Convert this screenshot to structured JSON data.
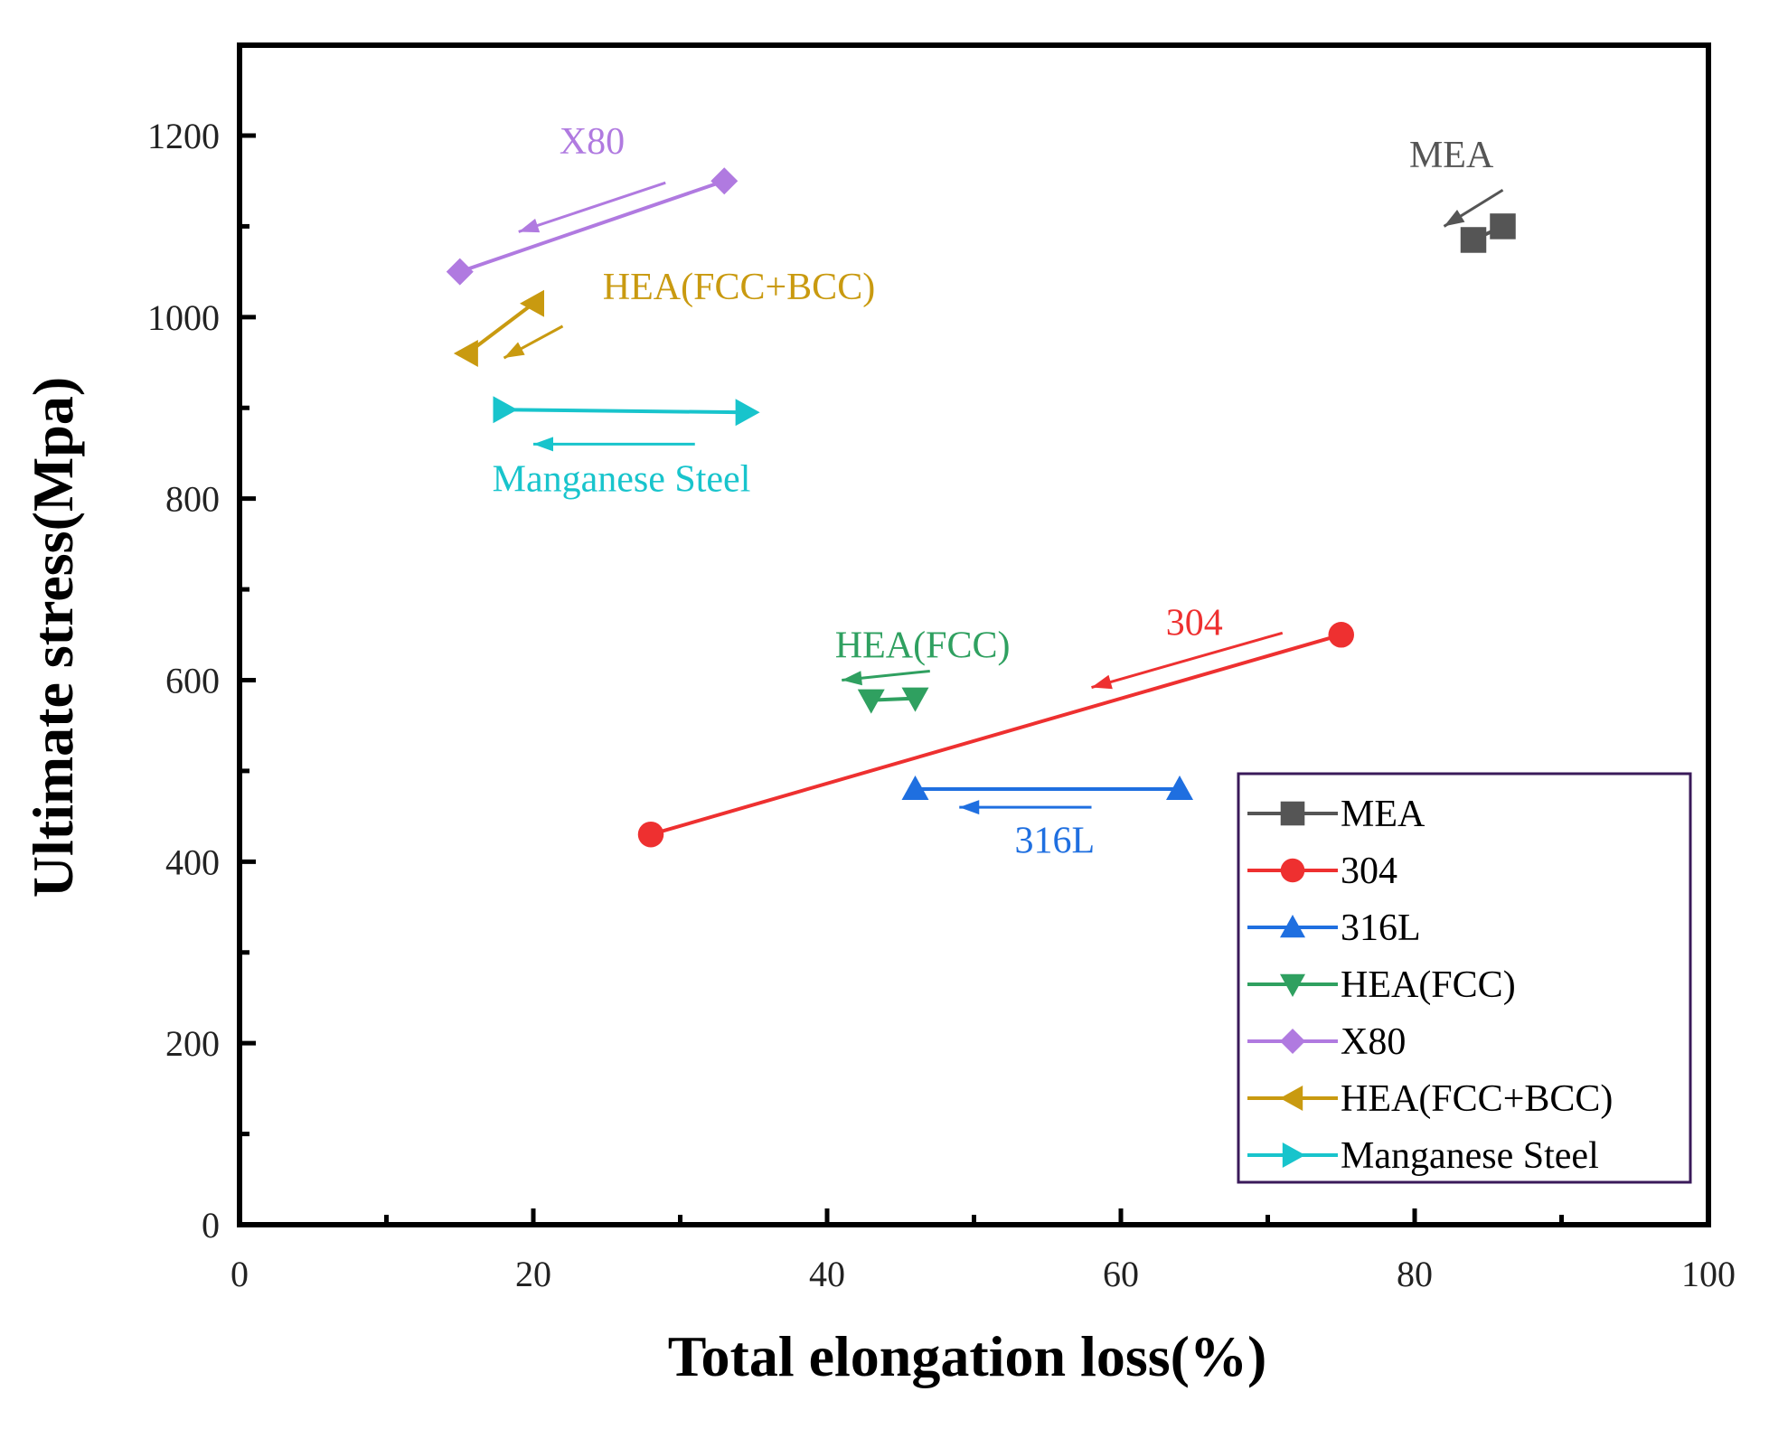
{
  "chart_data": {
    "type": "scatter",
    "title": "",
    "xlabel": "Total elongation loss(%)",
    "ylabel": "Ultimate stress(Mpa)",
    "xlim": [
      0,
      100
    ],
    "ylim": [
      0,
      1300
    ],
    "xticks": [
      0,
      20,
      40,
      60,
      80,
      100
    ],
    "yticks": [
      0,
      200,
      400,
      600,
      800,
      1000,
      1200
    ],
    "grid": false,
    "legend_position": "bottom-right",
    "series": [
      {
        "name": "MEA",
        "color": "#555555",
        "marker": "square",
        "points": [
          [
            84,
            1085
          ],
          [
            86,
            1100
          ]
        ],
        "annotation": {
          "text": "MEA",
          "x": 82.5,
          "y": 1165
        },
        "arrow": {
          "from": [
            86,
            1140
          ],
          "to": [
            82,
            1100
          ]
        }
      },
      {
        "name": "304",
        "color": "#ee3030",
        "marker": "circle",
        "points": [
          [
            28,
            430
          ],
          [
            75,
            650
          ]
        ],
        "annotation": {
          "text": "304",
          "x": 65,
          "y": 650
        },
        "arrow": {
          "from": [
            71,
            652
          ],
          "to": [
            58,
            592
          ]
        }
      },
      {
        "name": "316L",
        "color": "#1f6fe0",
        "marker": "triangle-up",
        "points": [
          [
            46,
            480
          ],
          [
            64,
            480
          ]
        ],
        "annotation": {
          "text": "316L",
          "x": 55.5,
          "y": 410
        },
        "arrow": {
          "from": [
            58,
            460
          ],
          "to": [
            49,
            460
          ]
        }
      },
      {
        "name": "HEA(FCC)",
        "color": "#2fa060",
        "marker": "triangle-down",
        "points": [
          [
            43,
            578
          ],
          [
            46,
            580
          ]
        ],
        "annotation": {
          "text": "HEA(FCC)",
          "x": 46.5,
          "y": 625
        },
        "arrow": {
          "from": [
            47,
            610
          ],
          "to": [
            41,
            600
          ]
        }
      },
      {
        "name": "X80",
        "color": "#b07ae0",
        "marker": "diamond",
        "points": [
          [
            15,
            1050
          ],
          [
            33,
            1150
          ]
        ],
        "annotation": {
          "text": "X80",
          "x": 24,
          "y": 1180
        },
        "arrow": {
          "from": [
            29,
            1148
          ],
          "to": [
            19,
            1094
          ]
        }
      },
      {
        "name": "HEA(FCC+BCC)",
        "color": "#c99a10",
        "marker": "triangle-left",
        "points": [
          [
            15.5,
            960
          ],
          [
            20,
            1015
          ]
        ],
        "annotation": {
          "text": "HEA(FCC+BCC)",
          "x": 34,
          "y": 1020
        },
        "arrow": {
          "from": [
            22,
            990
          ],
          "to": [
            18,
            955
          ]
        }
      },
      {
        "name": "Manganese Steel",
        "color": "#18c4cc",
        "marker": "triangle-right",
        "points": [
          [
            18,
            898
          ],
          [
            34.5,
            895
          ]
        ],
        "annotation": {
          "text": "Manganese Steel",
          "x": 26,
          "y": 808
        },
        "arrow": {
          "from": [
            31,
            860
          ],
          "to": [
            20,
            860
          ]
        }
      }
    ]
  }
}
